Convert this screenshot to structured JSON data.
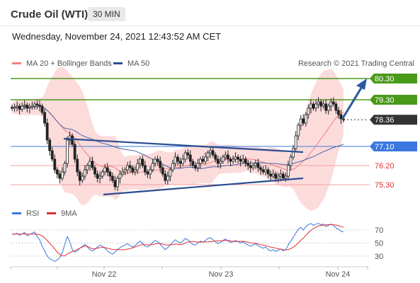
{
  "header": {
    "title": "Crude Oil (WTI)",
    "interval": "30 MIN",
    "datetime": "Wednesday, November 24, 2021 12:43:52 AM CET"
  },
  "legend": {
    "items": [
      {
        "label": "MA 20 + Bollinger Bands",
        "color": "#f08080"
      },
      {
        "label": "MA 50",
        "color": "#2a4d8f"
      }
    ],
    "copyright": "Research © 2021 Trading Central"
  },
  "chart_data": [
    {
      "type": "candlestick",
      "x_ticks": [
        "Nov 22",
        "Nov 23",
        "Nov 24"
      ],
      "ylim": [
        74.6,
        80.6
      ],
      "levels": [
        {
          "value": 80.3,
          "label": "80.30",
          "color": "#4a9a1a",
          "kind": "resistance"
        },
        {
          "value": 79.3,
          "label": "79.30",
          "color": "#4a9a1a",
          "kind": "resistance"
        },
        {
          "value": 78.36,
          "label": "78.36",
          "color": "#333333",
          "kind": "last-price"
        },
        {
          "value": 77.1,
          "label": "77.10",
          "color": "#3a78e0",
          "kind": "pivot"
        },
        {
          "value": 76.2,
          "label": "76.20",
          "color": "#e03030",
          "kind": "support"
        },
        {
          "value": 75.3,
          "label": "75.30",
          "color": "#e03030",
          "kind": "support"
        }
      ],
      "closes": [
        78.9,
        78.95,
        79.0,
        78.85,
        79.0,
        79.05,
        78.9,
        78.95,
        79.0,
        79.1,
        79.05,
        79.0,
        78.7,
        78.2,
        77.4,
        76.9,
        76.5,
        76.0,
        75.8,
        75.6,
        75.9,
        76.3,
        77.4,
        77.6,
        77.2,
        76.5,
        75.9,
        75.5,
        75.7,
        76.0,
        76.2,
        76.4,
        76.1,
        75.8,
        75.6,
        75.7,
        75.9,
        76.1,
        75.9,
        75.7,
        75.5,
        75.2,
        75.6,
        75.8,
        75.9,
        76.0,
        76.2,
        76.1,
        75.9,
        76.0,
        76.3,
        76.5,
        76.2,
        75.9,
        75.8,
        76.0,
        76.3,
        76.5,
        76.4,
        76.1,
        75.8,
        75.5,
        75.7,
        76.0,
        76.3,
        76.6,
        76.4,
        76.3,
        76.5,
        76.8,
        76.7,
        76.4,
        76.2,
        76.1,
        76.3,
        76.5,
        76.4,
        76.6,
        76.8,
        76.9,
        76.7,
        76.5,
        76.3,
        76.4,
        76.6,
        76.7,
        76.5,
        76.4,
        76.5,
        76.6,
        76.5,
        76.4,
        76.5,
        76.3,
        76.2,
        76.1,
        76.2,
        76.3,
        76.1,
        76.0,
        75.9,
        76.0,
        75.8,
        75.7,
        75.8,
        75.6,
        75.7,
        75.8,
        75.6,
        75.7,
        76.2,
        76.6,
        77.0,
        77.6,
        78.1,
        78.4,
        78.2,
        78.6,
        78.9,
        79.1,
        78.9,
        79.1,
        79.2,
        79.0,
        79.1,
        78.8,
        79.0,
        79.2,
        79.1,
        78.8,
        78.6,
        78.4,
        78.36
      ],
      "rsi": {
        "labels": [
          "RSI",
          "9MA"
        ],
        "colors": [
          "#3a78e0",
          "#e03030"
        ],
        "y_ticks": [
          70,
          50,
          30
        ],
        "values": [
          64,
          63,
          65,
          62,
          64,
          66,
          61,
          63,
          65,
          67,
          60,
          55,
          45,
          38,
          30,
          26,
          24,
          22,
          24,
          28,
          35,
          48,
          60,
          52,
          40,
          36,
          38,
          42,
          45,
          48,
          44,
          40,
          38,
          40,
          44,
          47,
          45,
          42,
          38,
          35,
          33,
          36,
          40,
          43,
          45,
          47,
          49,
          46,
          44,
          46,
          50,
          53,
          49,
          45,
          44,
          47,
          51,
          54,
          52,
          48,
          44,
          40,
          43,
          47,
          51,
          55,
          52,
          50,
          53,
          57,
          55,
          51,
          48,
          47,
          50,
          53,
          51,
          54,
          57,
          58,
          55,
          52,
          49,
          51,
          54,
          56,
          53,
          51,
          52,
          54,
          52,
          50,
          52,
          49,
          47,
          45,
          47,
          49,
          46,
          44,
          42,
          44,
          40,
          38,
          40,
          37,
          39,
          41,
          38,
          40,
          47,
          53,
          59,
          65,
          71,
          74,
          70,
          75,
          78,
          80,
          77,
          79,
          80,
          78,
          79,
          75,
          77,
          79,
          77,
          73,
          71,
          68,
          67
        ]
      }
    }
  ]
}
